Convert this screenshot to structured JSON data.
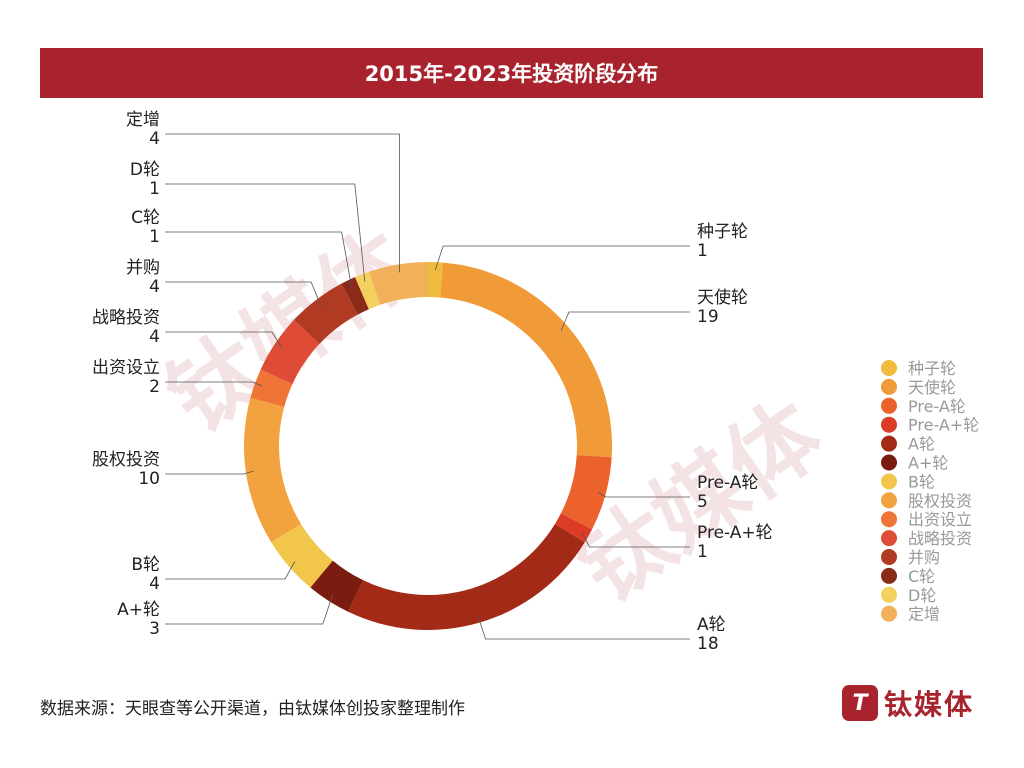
{
  "title": "2015年-2023年投资阶段分布",
  "source": "数据来源：天眼查等公开渠道，由钛媒体创投家整理制作",
  "logo": {
    "mark": "T",
    "text": "钛媒体"
  },
  "watermark": "钛媒体",
  "chart_data": {
    "type": "pie",
    "donut": true,
    "title": "2015年-2023年投资阶段分布",
    "legend_position": "right",
    "categories": [
      "种子轮",
      "天使轮",
      "Pre-A轮",
      "Pre-A+轮",
      "A轮",
      "A+轮",
      "B轮",
      "股权投资",
      "出资设立",
      "战略投资",
      "并购",
      "C轮",
      "D轮",
      "定增"
    ],
    "values": [
      1,
      19,
      5,
      1,
      18,
      3,
      4,
      10,
      2,
      4,
      4,
      1,
      1,
      4
    ],
    "colors": [
      "#F0BC3E",
      "#F09A38",
      "#EC622C",
      "#DB3B27",
      "#A32A17",
      "#7A1D10",
      "#F2C64A",
      "#F2A340",
      "#EE7438",
      "#DE4C35",
      "#B03A22",
      "#8A2A18",
      "#F4D05E",
      "#F2B05A"
    ]
  }
}
